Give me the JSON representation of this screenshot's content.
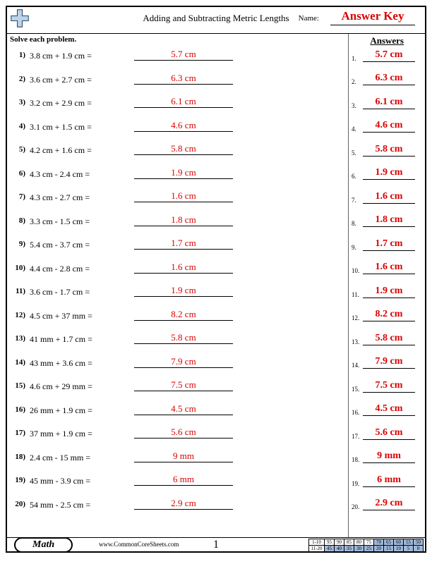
{
  "header": {
    "title": "Adding and Subtracting Metric Lengths",
    "name_label": "Name:",
    "name_value": "Answer Key"
  },
  "instruction": "Solve each problem.",
  "answers_heading": "Answers",
  "problems": [
    {
      "n": "1)",
      "expr": "3.8 cm + 1.9 cm  =",
      "ans": "5.7 cm"
    },
    {
      "n": "2)",
      "expr": "3.6 cm + 2.7 cm  =",
      "ans": "6.3 cm"
    },
    {
      "n": "3)",
      "expr": "3.2 cm + 2.9 cm  =",
      "ans": "6.1 cm"
    },
    {
      "n": "4)",
      "expr": "3.1 cm + 1.5 cm  =",
      "ans": "4.6 cm"
    },
    {
      "n": "5)",
      "expr": "4.2 cm + 1.6 cm  =",
      "ans": "5.8 cm"
    },
    {
      "n": "6)",
      "expr": "4.3 cm - 2.4 cm  =",
      "ans": "1.9 cm"
    },
    {
      "n": "7)",
      "expr": "4.3 cm - 2.7 cm  =",
      "ans": "1.6 cm"
    },
    {
      "n": "8)",
      "expr": "3.3 cm - 1.5 cm  =",
      "ans": "1.8 cm"
    },
    {
      "n": "9)",
      "expr": "5.4 cm - 3.7 cm  =",
      "ans": "1.7 cm"
    },
    {
      "n": "10)",
      "expr": "4.4 cm - 2.8 cm  =",
      "ans": "1.6 cm"
    },
    {
      "n": "11)",
      "expr": "3.6 cm - 1.7 cm  =",
      "ans": "1.9 cm"
    },
    {
      "n": "12)",
      "expr": "4.5 cm + 37 mm  =",
      "ans": "8.2 cm"
    },
    {
      "n": "13)",
      "expr": "41 mm + 1.7 cm  =",
      "ans": "5.8 cm"
    },
    {
      "n": "14)",
      "expr": "43 mm + 3.6 cm  =",
      "ans": "7.9 cm"
    },
    {
      "n": "15)",
      "expr": "4.6 cm + 29 mm  =",
      "ans": "7.5 cm"
    },
    {
      "n": "16)",
      "expr": "26 mm + 1.9 cm  =",
      "ans": "4.5 cm"
    },
    {
      "n": "17)",
      "expr": "37 mm + 1.9 cm  =",
      "ans": "5.6 cm"
    },
    {
      "n": "18)",
      "expr": "2.4 cm - 15 mm  =",
      "ans": "9 mm"
    },
    {
      "n": "19)",
      "expr": "45 mm - 3.9 cm  =",
      "ans": "6 mm"
    },
    {
      "n": "20)",
      "expr": "54 mm - 2.5 cm  =",
      "ans": "2.9 cm"
    }
  ],
  "answers": [
    {
      "n": "1.",
      "v": "5.7 cm"
    },
    {
      "n": "2.",
      "v": "6.3 cm"
    },
    {
      "n": "3.",
      "v": "6.1 cm"
    },
    {
      "n": "4.",
      "v": "4.6 cm"
    },
    {
      "n": "5.",
      "v": "5.8 cm"
    },
    {
      "n": "6.",
      "v": "1.9 cm"
    },
    {
      "n": "7.",
      "v": "1.6 cm"
    },
    {
      "n": "8.",
      "v": "1.8 cm"
    },
    {
      "n": "9.",
      "v": "1.7 cm"
    },
    {
      "n": "10.",
      "v": "1.6 cm"
    },
    {
      "n": "11.",
      "v": "1.9 cm"
    },
    {
      "n": "12.",
      "v": "8.2 cm"
    },
    {
      "n": "13.",
      "v": "5.8 cm"
    },
    {
      "n": "14.",
      "v": "7.9 cm"
    },
    {
      "n": "15.",
      "v": "7.5 cm"
    },
    {
      "n": "16.",
      "v": "4.5 cm"
    },
    {
      "n": "17.",
      "v": "5.6 cm"
    },
    {
      "n": "18.",
      "v": "9 mm"
    },
    {
      "n": "19.",
      "v": "6 mm"
    },
    {
      "n": "20.",
      "v": "2.9 cm"
    }
  ],
  "footer": {
    "subject": "Math",
    "site": "www.CommonCoreSheets.com",
    "page": "1",
    "score_rows": [
      {
        "label": "1-10",
        "cells": [
          "95",
          "90",
          "85",
          "80",
          "75",
          "70",
          "65",
          "60",
          "55",
          "50"
        ],
        "shade_from": 5
      },
      {
        "label": "11-20",
        "cells": [
          "45",
          "40",
          "35",
          "30",
          "25",
          "20",
          "15",
          "10",
          "5",
          "0"
        ],
        "shade_from": 0
      }
    ]
  },
  "colors": {
    "answer_red": "#d80000",
    "grid_shade": "#9fb8d9",
    "border": "#000000"
  }
}
